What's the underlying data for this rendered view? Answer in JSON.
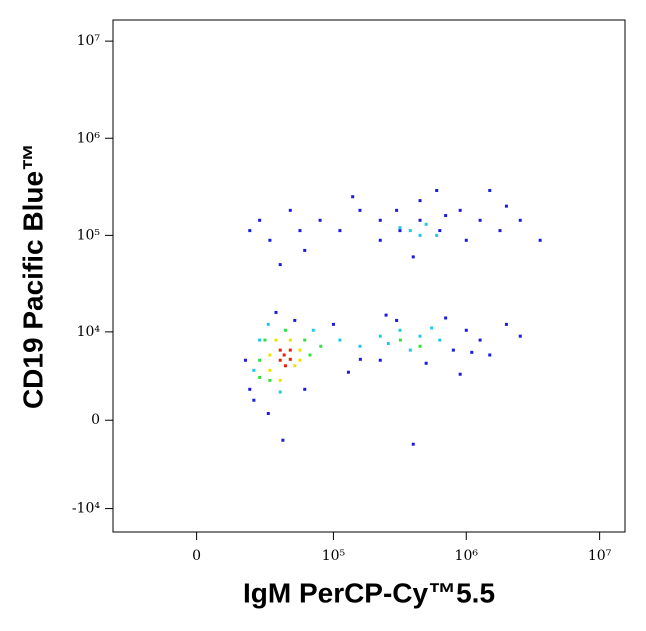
{
  "chart_data": {
    "type": "scatter",
    "x_label": "IgM PerCP-Cy™5.5",
    "y_label": "CD19 Pacific Blue™",
    "xscale": "asinh",
    "yscale": "asinh",
    "xlim": [
      -38000,
      15500000
    ],
    "ylim": [
      -17600,
      16500000
    ],
    "xticks": [
      0,
      {
        "value": 100000,
        "label": "10⁵"
      },
      {
        "value": 1000000,
        "label": "10⁶"
      },
      {
        "value": 10000000,
        "label": "10⁷"
      }
    ],
    "yticks": [
      {
        "value": -10000,
        "label": "-10⁴"
      },
      0,
      {
        "value": 10000,
        "label": "10⁴"
      },
      {
        "value": 100000,
        "label": "10⁵"
      },
      {
        "value": 1000000,
        "label": "10⁶"
      },
      {
        "value": 10000000,
        "label": "10⁷"
      }
    ],
    "series": [
      {
        "color": "#1a1ae0",
        "x": [
          20000,
          22000,
          30000,
          40000,
          50000,
          100000,
          160000,
          226000,
          300000,
          500000,
          800000,
          1000000,
          1270000,
          1500000,
          2000000,
          2540000,
          250000,
          700000,
          1100000,
          18000,
          35000,
          60000,
          130000,
          900000,
          400000,
          20000,
          25000,
          31000,
          46000,
          55000,
          79000,
          112000,
          159000,
          226000,
          318000,
          450000,
          633000,
          900000,
          1270000,
          1790000,
          2540000,
          3580000,
          450000,
          226000,
          1000000,
          300000,
          700000,
          2000000,
          140000,
          60000,
          38000,
          400000,
          1500000,
          600000
        ],
        "y": [
          2000,
          1230,
          400,
          -1230,
          13200,
          12000,
          5000,
          4880,
          13200,
          4500,
          6350,
          10400,
          8170,
          5600,
          12000,
          9000,
          15000,
          14000,
          6000,
          4880,
          16000,
          2000,
          3500,
          3300,
          -1500,
          112000,
          143000,
          89000,
          181000,
          112000,
          143000,
          112000,
          181000,
          143000,
          112000,
          143000,
          112000,
          181000,
          143000,
          112000,
          143000,
          89000,
          228000,
          89000,
          89000,
          181000,
          160000,
          200000,
          250000,
          70000,
          50000,
          60000,
          290000,
          290000
        ]
      },
      {
        "color": "#20c8e8",
        "x": [
          22000,
          25000,
          38000,
          70000,
          112000,
          159000,
          226000,
          318000,
          450000,
          633000,
          380000,
          260000,
          550000,
          30000,
          380000,
          450000,
          500000,
          318000,
          600000
        ],
        "y": [
          3700,
          8170,
          1800,
          10400,
          8170,
          7000,
          9000,
          10400,
          9000,
          8170,
          6350,
          7500,
          11000,
          12000,
          112000,
          100000,
          130000,
          120000,
          100000
        ]
      },
      {
        "color": "#30e040",
        "x": [
          25000,
          60000,
          31000,
          42000,
          66000,
          25000,
          80000,
          28000,
          320000,
          450000
        ],
        "y": [
          4880,
          8170,
          2730,
          10400,
          5600,
          3000,
          7000,
          8170,
          8170,
          7000
        ]
      },
      {
        "color": "#f0e000",
        "x": [
          31000,
          55000,
          35000,
          50000,
          31000,
          46000,
          38000,
          55000
        ],
        "y": [
          3700,
          6350,
          8170,
          4200,
          5600,
          8170,
          2730,
          4880
        ]
      },
      {
        "color": "#e8200a",
        "x": [
          38000,
          41000,
          46000,
          38000,
          42000,
          46000
        ],
        "y": [
          4880,
          5600,
          6350,
          6350,
          4200,
          5000
        ]
      }
    ]
  }
}
